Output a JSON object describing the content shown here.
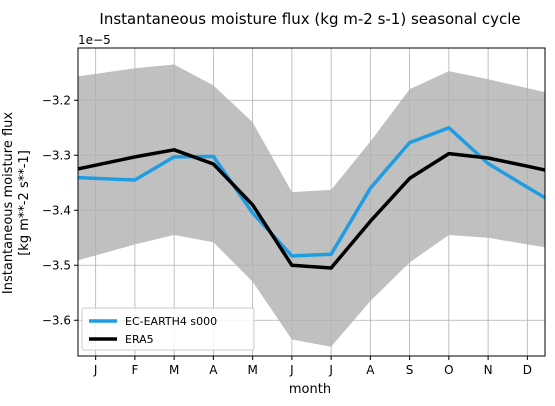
{
  "chart_data": {
    "type": "line",
    "title": "Instantaneous moisture flux (kg m-2 s-1) seasonal cycle",
    "xlabel": "month",
    "ylabel_line1": "Instantaneous moisture flux",
    "ylabel_line2": "[kg m**-2 s**-1]",
    "y_offset_label": "1e−5",
    "categories": [
      "J",
      "F",
      "M",
      "A",
      "M",
      "J",
      "J",
      "A",
      "S",
      "O",
      "N",
      "D"
    ],
    "xlim": [
      0.55,
      12.45
    ],
    "ylim": [
      -3.665,
      -3.105
    ],
    "y_scale_exponent": -5,
    "yticks": [
      -3.2,
      -3.3,
      -3.4,
      -3.5,
      -3.6
    ],
    "ytick_labels": [
      "−3.2",
      "−3.3",
      "−3.4",
      "−3.5",
      "−3.6"
    ],
    "grid": true,
    "legend_position": "lower-left",
    "series": [
      {
        "name": "EC-EARTH4 s000",
        "color": "#1f9de0",
        "values": [
          -3.342,
          -3.345,
          -3.303,
          -3.302,
          -3.405,
          -3.483,
          -3.48,
          -3.36,
          -3.277,
          -3.25,
          -3.315,
          -3.358
        ]
      },
      {
        "name": "ERA5",
        "color": "#000000",
        "values": [
          -3.318,
          -3.303,
          -3.29,
          -3.316,
          -3.39,
          -3.5,
          -3.505,
          -3.42,
          -3.342,
          -3.297,
          -3.305,
          -3.32
        ]
      }
    ],
    "band": {
      "color": "#c0c0c0",
      "upper": [
        -3.152,
        -3.142,
        -3.135,
        -3.173,
        -3.24,
        -3.367,
        -3.363,
        -3.275,
        -3.18,
        -3.147,
        -3.162,
        -3.178
      ],
      "lower": [
        -3.482,
        -3.462,
        -3.445,
        -3.458,
        -3.53,
        -3.635,
        -3.648,
        -3.565,
        -3.495,
        -3.445,
        -3.45,
        -3.462
      ]
    }
  }
}
